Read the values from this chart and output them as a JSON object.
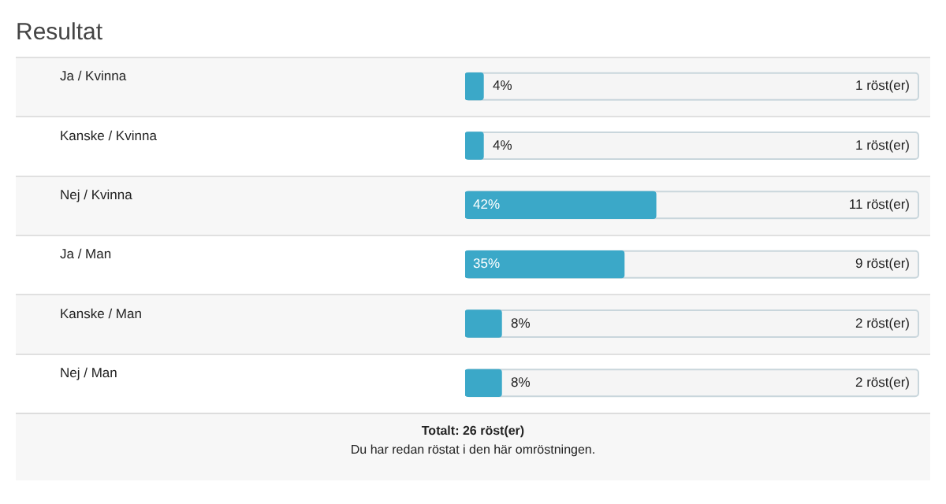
{
  "chart_data": {
    "type": "bar",
    "orientation": "horizontal",
    "title": "Resultat",
    "categories": [
      "Ja / Kvinna",
      "Kanske / Kvinna",
      "Nej / Kvinna",
      "Ja / Man",
      "Kanske / Man",
      "Nej / Man"
    ],
    "values": [
      4,
      4,
      42,
      35,
      8,
      8
    ],
    "value_labels": [
      "4%",
      "4%",
      "42%",
      "35%",
      "8%",
      "8%"
    ],
    "color": "#3ba8c8",
    "xlim": [
      0,
      100
    ],
    "annotations": [
      "1 röst(er)",
      "1 röst(er)",
      "11 röst(er)",
      "9 röst(er)",
      "2 röst(er)",
      "2 röst(er)",
      "Totalt: 26 röst(er)",
      "Du har redan röstat i den här omröstningen."
    ]
  }
}
